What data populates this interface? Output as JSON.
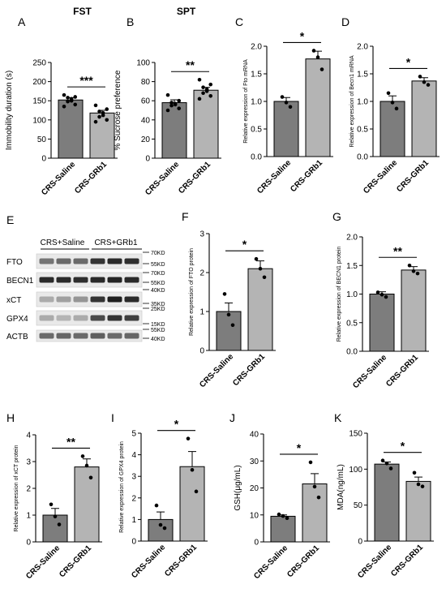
{
  "chart_data": [
    {
      "type": "bar",
      "panel": "A",
      "title": "FST",
      "ylabel": "Immobility duration (s)",
      "ylim": [
        0,
        250
      ],
      "yticks": [
        0,
        50,
        100,
        150,
        200,
        250
      ],
      "categories": [
        "CRS-Saline",
        "CRS-GRb1"
      ],
      "values": [
        152,
        118
      ],
      "errors": [
        6,
        7
      ],
      "points": [
        [
          165,
          160,
          158,
          155,
          150,
          148,
          140,
          135
        ],
        [
          138,
          128,
          122,
          118,
          112,
          108,
          100,
          95
        ]
      ],
      "significance": "***"
    },
    {
      "type": "bar",
      "panel": "B",
      "title": "SPT",
      "ylabel": "% Sucrose preference",
      "ylim": [
        0,
        100
      ],
      "yticks": [
        0,
        20,
        40,
        60,
        80,
        100
      ],
      "categories": [
        "CRS-Saline",
        "CRS-GRb1"
      ],
      "values": [
        58,
        71
      ],
      "errors": [
        3,
        3
      ],
      "points": [
        [
          66,
          60,
          58,
          57,
          56,
          55,
          52,
          50
        ],
        [
          82,
          77,
          74,
          72,
          70,
          68,
          65,
          62
        ]
      ],
      "significance": "**"
    },
    {
      "type": "bar",
      "panel": "C",
      "ylabel": "Relative expression of Fto mRNA",
      "ylim": [
        0,
        2.0
      ],
      "yticks": [
        0,
        0.5,
        1.0,
        1.5,
        2.0
      ],
      "categories": [
        "CRS-Saline",
        "CRS-GRb1"
      ],
      "values": [
        1.0,
        1.77
      ],
      "errors": [
        0.07,
        0.14
      ],
      "points": [
        [
          1.08,
          0.98,
          0.9
        ],
        [
          1.92,
          1.8,
          1.58
        ]
      ],
      "significance": "*"
    },
    {
      "type": "bar",
      "panel": "D",
      "ylabel": "Relative expression of Becn1 mRNA",
      "ylim": [
        0,
        2.0
      ],
      "yticks": [
        0,
        0.5,
        1.0,
        1.5,
        2.0
      ],
      "categories": [
        "CRS-Saline",
        "CRS-GRb1"
      ],
      "values": [
        1.0,
        1.37
      ],
      "errors": [
        0.1,
        0.06
      ],
      "points": [
        [
          1.15,
          0.98,
          0.87
        ],
        [
          1.45,
          1.35,
          1.3
        ]
      ],
      "significance": "*"
    },
    {
      "type": "bar",
      "panel": "F",
      "ylabel": "Relative expression of FTO protein",
      "ylim": [
        0,
        3
      ],
      "yticks": [
        0,
        1,
        2,
        3
      ],
      "categories": [
        "CRS-Saline",
        "CRS-GRb1"
      ],
      "values": [
        1.0,
        2.1
      ],
      "errors": [
        0.22,
        0.2
      ],
      "points": [
        [
          1.45,
          0.92,
          0.65
        ],
        [
          2.35,
          2.1,
          1.88
        ]
      ],
      "significance": "*"
    },
    {
      "type": "bar",
      "panel": "G",
      "ylabel": "Relative expression of BECN1 protein",
      "ylim": [
        0,
        2.0
      ],
      "yticks": [
        0,
        0.5,
        1.0,
        1.5,
        2.0
      ],
      "categories": [
        "CRS-Saline",
        "CRS-GRb1"
      ],
      "values": [
        1.0,
        1.42
      ],
      "errors": [
        0.04,
        0.06
      ],
      "points": [
        [
          1.03,
          0.99,
          0.95
        ],
        [
          1.5,
          1.4,
          1.36
        ]
      ],
      "significance": "**"
    },
    {
      "type": "bar",
      "panel": "H",
      "ylabel": "Relative expression of xCT protein",
      "ylim": [
        0,
        4
      ],
      "yticks": [
        0,
        1,
        2,
        3,
        4
      ],
      "categories": [
        "CRS-Saline",
        "CRS-GRb1"
      ],
      "values": [
        1.0,
        2.8
      ],
      "errors": [
        0.25,
        0.3
      ],
      "points": [
        [
          1.4,
          0.95,
          0.65
        ],
        [
          3.2,
          2.85,
          2.4
        ]
      ],
      "significance": "**"
    },
    {
      "type": "bar",
      "panel": "I",
      "ylabel": "Relative expression of GPX4 protein",
      "ylim": [
        0,
        5
      ],
      "yticks": [
        0,
        1,
        2,
        3,
        4,
        5
      ],
      "categories": [
        "CRS-Saline",
        "CRS-GRb1"
      ],
      "values": [
        1.0,
        3.45
      ],
      "errors": [
        0.35,
        0.7
      ],
      "points": [
        [
          1.65,
          0.75,
          0.6
        ],
        [
          4.75,
          3.3,
          2.3
        ]
      ],
      "significance": "*"
    },
    {
      "type": "bar",
      "panel": "J",
      "ylabel": "GSH(μg/mL)",
      "ylim": [
        0,
        40
      ],
      "yticks": [
        0,
        10,
        20,
        30,
        40
      ],
      "categories": [
        "CRS-Saline",
        "CRS-GRb1"
      ],
      "values": [
        9.5,
        21.5
      ],
      "errors": [
        0.5,
        3.8
      ],
      "points": [
        [
          10.2,
          9.6,
          8.8
        ],
        [
          29.5,
          20.5,
          16.5
        ]
      ],
      "significance": "*"
    },
    {
      "type": "bar",
      "panel": "K",
      "ylabel": "MDA(ng/mL)",
      "ylim": [
        0,
        150
      ],
      "yticks": [
        0,
        50,
        100,
        150
      ],
      "categories": [
        "CRS-Saline",
        "CRS-GRb1"
      ],
      "values": [
        107,
        83
      ],
      "errors": [
        3,
        6
      ],
      "points": [
        [
          112,
          108,
          101
        ],
        [
          95,
          79,
          76
        ]
      ],
      "significance": "*"
    }
  ],
  "blot": {
    "panel": "E",
    "groups": [
      "CRS+Saline",
      "CRS+GRb1"
    ],
    "proteins": [
      "FTO",
      "BECN1",
      "xCT",
      "GPX4",
      "ACTB"
    ],
    "markers": [
      "70KD",
      "55KD",
      "70KD",
      "55KD",
      "40KD",
      "35KD",
      "25KD",
      "15KD",
      "55KD",
      "40KD"
    ],
    "band_intensity": [
      [
        0.55,
        0.6,
        0.6,
        0.85,
        0.9,
        0.88
      ],
      [
        0.9,
        0.9,
        0.88,
        0.9,
        0.92,
        0.9
      ],
      [
        0.3,
        0.35,
        0.4,
        0.85,
        0.95,
        0.9
      ],
      [
        0.3,
        0.25,
        0.3,
        0.75,
        0.85,
        0.8
      ],
      [
        0.6,
        0.62,
        0.6,
        0.65,
        0.6,
        0.62
      ]
    ]
  },
  "colors": {
    "saline": "#7d7d7d",
    "grb1": "#b4b4b4",
    "axis": "#000000"
  }
}
